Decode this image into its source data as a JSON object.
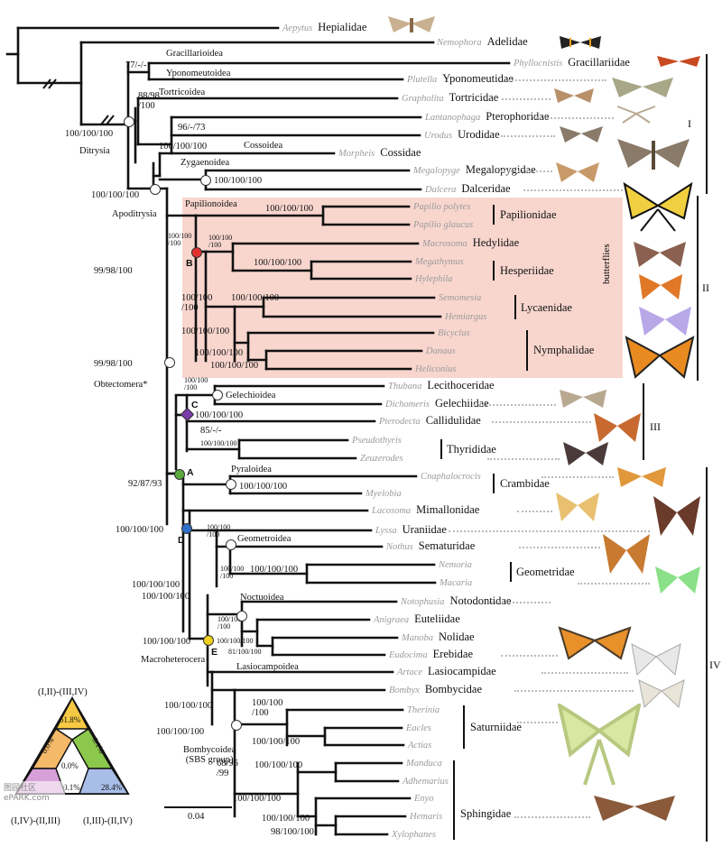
{
  "taxa": {
    "t1": {
      "genus": "Aepytus",
      "family": "Hepialidae"
    },
    "t2": {
      "genus": "Nemophora",
      "family": "Adelidae"
    },
    "t3": {
      "genus": "Phyllocnistis",
      "family": "Gracillariidae"
    },
    "t4": {
      "genus": "Plutella",
      "family": "Yponomeutidae"
    },
    "t5": {
      "genus": "Grapholita",
      "family": "Tortricidae"
    },
    "t6": {
      "genus": "Lantanophaga",
      "family": "Pterophoridae"
    },
    "t7": {
      "genus": "Urodus",
      "family": "Urodidae"
    },
    "t8": {
      "genus": "Morpheis",
      "family": "Cossidae"
    },
    "t9": {
      "genus": "Megalopyge",
      "family": "Megalopygidae"
    },
    "t10": {
      "genus": "Dalcera",
      "family": "Dalceridae"
    },
    "t11": {
      "genus": "Papilio polytes"
    },
    "t12": {
      "genus": "Papilio glaucus"
    },
    "t13": {
      "genus": "Macrosoma",
      "family": "Hedylidae"
    },
    "t14": {
      "genus": "Megathymus"
    },
    "t15": {
      "genus": "Hylephila"
    },
    "t16": {
      "genus": "Semomesia"
    },
    "t17": {
      "genus": "Hemiargus"
    },
    "t18": {
      "genus": "Bicyclus"
    },
    "t19": {
      "genus": "Danaus"
    },
    "t20": {
      "genus": "Heliconius"
    },
    "t21": {
      "genus": "Thubana",
      "family": "Lecithoceridae"
    },
    "t22": {
      "genus": "Dichomeris",
      "family": "Gelechiidae"
    },
    "t23": {
      "genus": "Pterodecta",
      "family": "Callidulidae"
    },
    "t24": {
      "genus": "Pseudothyris"
    },
    "t25": {
      "genus": "Zeuzerodes"
    },
    "t26": {
      "genus": "Cnaphalocrocis"
    },
    "t27": {
      "genus": "Myelobia"
    },
    "t28": {
      "genus": "Lacosoma",
      "family": "Mimallonidae"
    },
    "t29": {
      "genus": "Lyssa",
      "family": "Uraniidae"
    },
    "t30": {
      "genus": "Nothus",
      "family": "Sematuridae"
    },
    "t31": {
      "genus": "Nemoria"
    },
    "t32": {
      "genus": "Macaria"
    },
    "t33": {
      "genus": "Notophusia",
      "family": "Notodontidae"
    },
    "t34": {
      "genus": "Anigraea",
      "family": "Euteliidae"
    },
    "t35": {
      "genus": "Manoba",
      "family": "Nolidae"
    },
    "t36": {
      "genus": "Eudocima",
      "family": "Erebidae"
    },
    "t37": {
      "genus": "Artace",
      "family": "Lasiocampidae"
    },
    "t38": {
      "genus": "Bombyx",
      "family": "Bombycidae"
    },
    "t39": {
      "genus": "Therinia"
    },
    "t40": {
      "genus": "Eacles"
    },
    "t41": {
      "genus": "Actias"
    },
    "t42": {
      "genus": "Manduca"
    },
    "t43": {
      "genus": "Adhemarius"
    },
    "t44": {
      "genus": "Enyo"
    },
    "t45": {
      "genus": "Hemaris"
    },
    "t46": {
      "genus": "Xylophanes"
    }
  },
  "families": {
    "papilionidae": "Papilionidae",
    "hesperiidae": "Hesperiidae",
    "lycaenidae": "Lycaenidae",
    "nymphalidae": "Nymphalidae",
    "thyrididae": "Thyrididae",
    "crambidae": "Crambidae",
    "geometridae": "Geometridae",
    "saturniidae": "Saturniidae",
    "sphingidae": "Sphingidae"
  },
  "superfamilies": {
    "gracillarioidea": "Gracillarioidea",
    "yponomeutoidea": "Yponomeutoidea",
    "tortricoidea": "Tortricoidea",
    "cossoidea": "Cossoidea",
    "zygaenoidea": "Zygaenoidea",
    "papilionoidea": "Papilionoidea",
    "gelechioidea": "Gelechioidea",
    "pyraloidea": "Pyraloidea",
    "geometroidea": "Geometroidea",
    "noctuoidea": "Noctuoidea",
    "lasiocampoidea": "Lasiocampoidea",
    "bombycoidea": "Bombycoidea\n(SBS group)"
  },
  "clades": {
    "ditrysia": "Ditrysia",
    "apoditrysia": "Apoditrysia",
    "obtectomera": "Obtectomera*",
    "macroheterocera": "Macroheterocera",
    "butterflies": "butterflies"
  },
  "nodes": {
    "A": "A",
    "B": "B",
    "C": "C",
    "D": "D",
    "E": "E"
  },
  "support": {
    "s1": "77/-/-",
    "s2": "100/100/100",
    "s3": "88/98\n/100",
    "s4": "96/-/73",
    "s5": "100/100/100",
    "s6": "100/100/100",
    "s7": "100/100/100",
    "s8": "99/98/100",
    "s9": "100/100/100",
    "s10": "100/100\n/100",
    "s11": "100/100\n/100",
    "s12": "100/100/100",
    "s13": "100/100/100",
    "s14": "100/100\n/100",
    "s15": "100/100/100",
    "s16": "100/100/100",
    "s17": "99/98/100",
    "s18": "100/100\n/100",
    "s19": "100/100/100",
    "s20": "85/-/-",
    "s21": "100/100/100",
    "s22": "92/87/93",
    "s23": "100/100/100",
    "s24": "100/100/100",
    "s25": "100/100\n/100",
    "s26": "100/100\n/100",
    "s27": "100/100/100",
    "s28": "100/100/100",
    "s29": "100/100/100",
    "s30": "100/100/100",
    "s31": "100/100\n/100",
    "s32": "100/100/100",
    "s33": "81/100/100",
    "s34": "100/100/100",
    "s35": "100/100/100",
    "s36": "100/100\n/100",
    "s37": "100/100/100",
    "s38": "68/96\n/99",
    "s39": "100/100/100",
    "s40": "100/100/100",
    "s41": "100/100/100",
    "s42": "98/100/100"
  },
  "groups": {
    "g1": "I",
    "g2": "II",
    "g3": "III",
    "g4": "IV"
  },
  "scale": {
    "label": "0.04"
  },
  "triangle": {
    "top_label": "(I,II)-(III,IV)",
    "left_label": "(I,IV)-(II,III)",
    "right_label": "(I,III)-(II,IV)",
    "top_value": "51.8%",
    "left_value": "0.0%",
    "right_value": "0.1%",
    "center_value": "0.0%",
    "bottom_value": "0.1%",
    "corner_value": "28.4%",
    "top_value_pct": 51.8,
    "corner_value_pct": 28.4,
    "colors": {
      "top": "#f6c944",
      "left": "#f5b96a",
      "right": "#8cc84b",
      "bottom_left": "#d8a0d8",
      "bottom_right": "#a8bde8"
    }
  },
  "watermark": "图园社区 ePARK.com",
  "colors": {
    "node_A": "#5aaa3c",
    "node_B": "#e03030",
    "node_C": "#7a3aa8",
    "node_D": "#2f70c8",
    "node_E": "#f0d020",
    "butterfly_box": "#f8d6ce"
  }
}
